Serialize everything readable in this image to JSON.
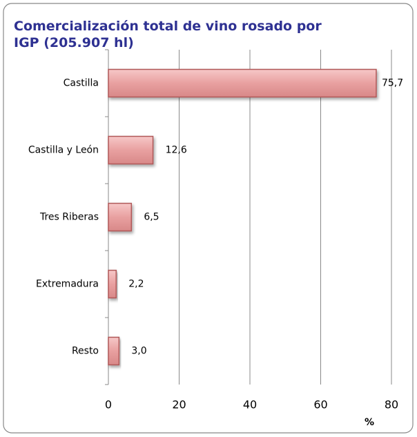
{
  "chart_data": {
    "type": "bar",
    "orientation": "horizontal",
    "title": "Comercialización total de vino rosado por IGP (205.907 hl)",
    "categories": [
      "Castilla",
      "Castilla  y León",
      "Tres Riberas",
      "Extremadura",
      "Resto"
    ],
    "values": [
      75.7,
      12.6,
      6.5,
      2.2,
      3.0
    ],
    "value_labels": [
      "75,7",
      "12,6",
      "6,5",
      "2,2",
      "3,0"
    ],
    "color": "#e8a0a0",
    "xlim": [
      0,
      80
    ],
    "xticks": [
      0,
      20,
      40,
      60,
      80
    ],
    "xlabel": "%",
    "grid": true
  }
}
